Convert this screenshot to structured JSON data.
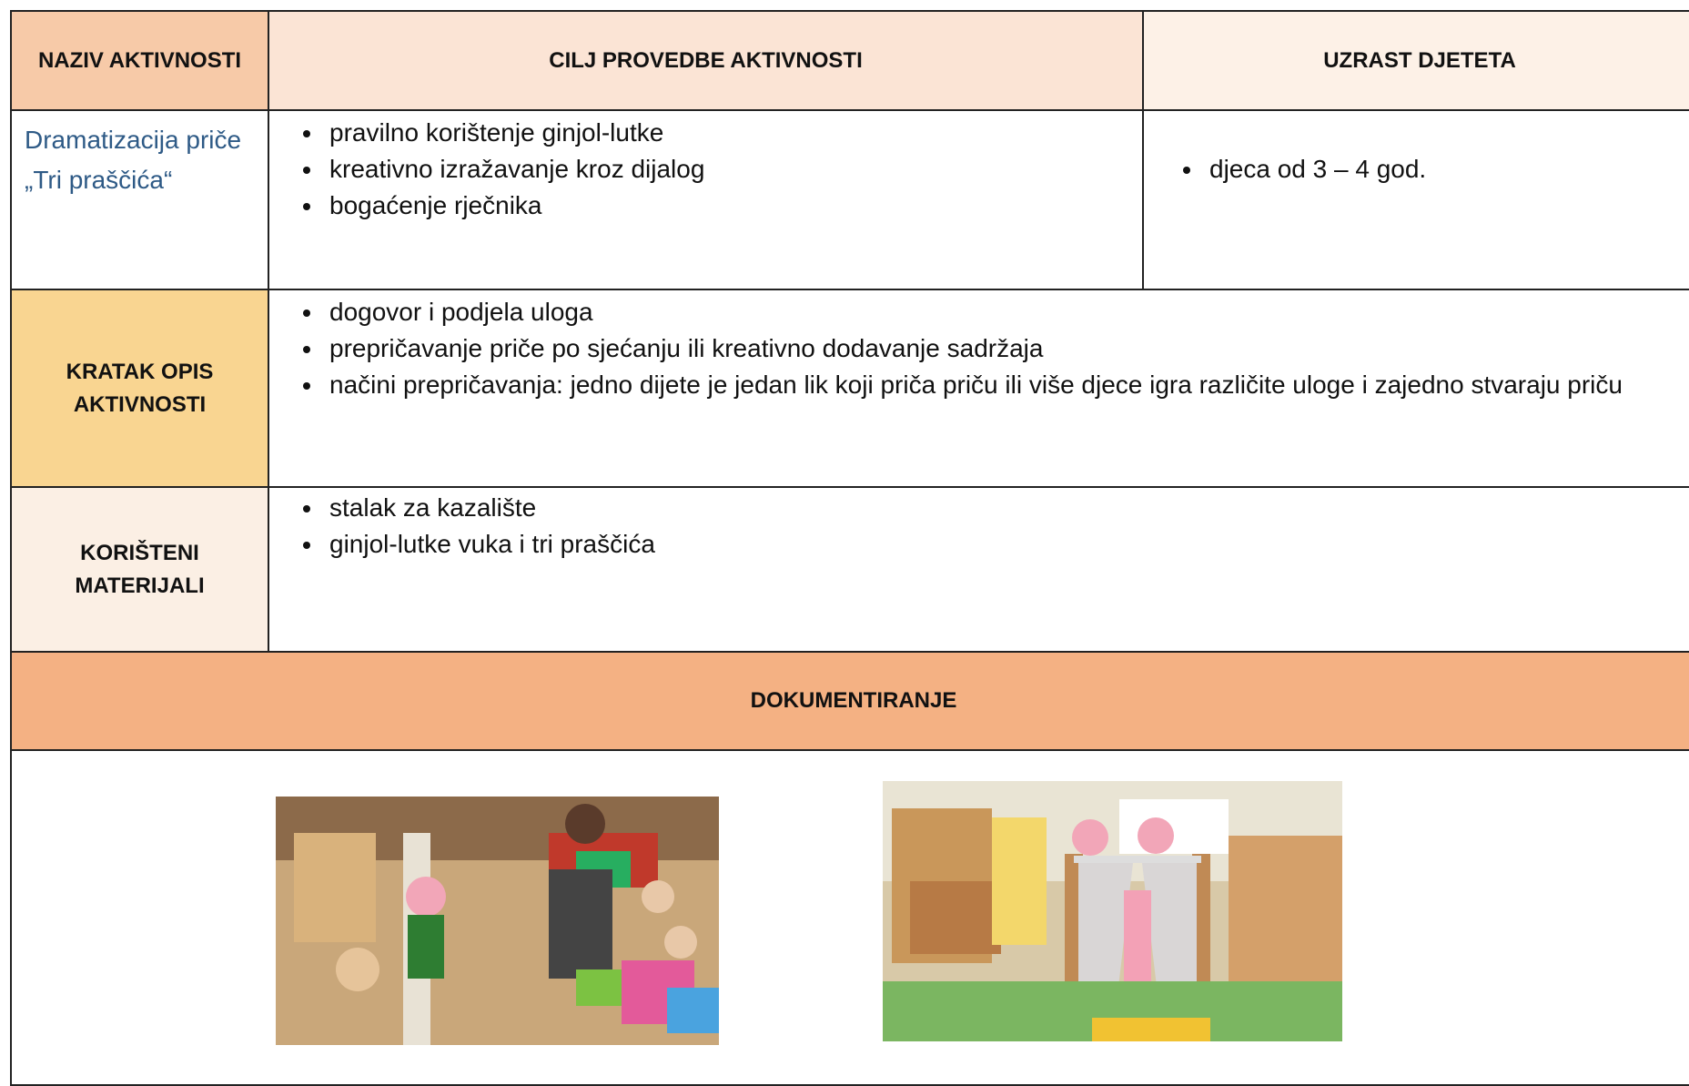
{
  "table": {
    "header": [
      "NAZIV AKTIVNOSTI",
      "CILJ PROVEDBE AKTIVNOSTI",
      "UZRAST DJETETA"
    ],
    "activity": {
      "name": "Dramatizacija priče „Tri praščića“",
      "goals": [
        "pravilno korištenje ginjol-lutke",
        "kreativno izražavanje kroz dijalog",
        "bogaćenje  rječnika"
      ],
      "age": [
        "djeca od 3 – 4 god."
      ]
    },
    "description": {
      "label": "KRATAK OPIS AKTIVNOSTI",
      "items": [
        "dogovor i podjela uloga",
        "prepričavanje priče po sjećanju ili kreativno dodavanje sadržaja",
        "načini prepričavanja:  jedno dijete je jedan lik koji priča priču ili više djece igra različite uloge i zajedno stvaraju priču"
      ]
    },
    "materials": {
      "label": "KORIŠTENI MATERIJALI",
      "items": [
        "stalak za kazalište",
        "ginjol-lutke vuka i tri praščića"
      ]
    },
    "documentation": {
      "label": "DOKUMENTIRANJE"
    }
  }
}
